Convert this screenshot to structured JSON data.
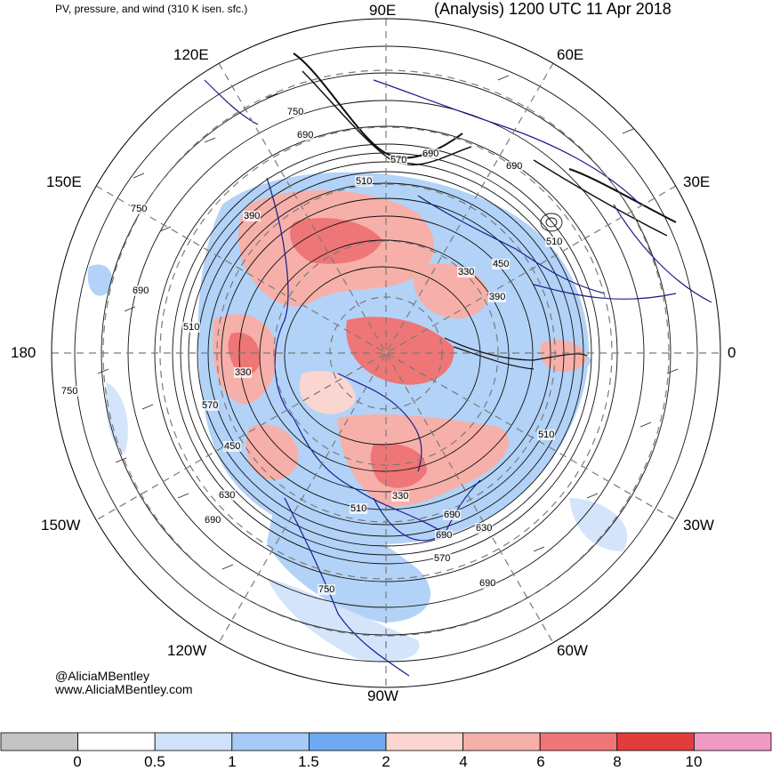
{
  "header": {
    "left_title": "PV, pressure, and wind (310 K isen. sfc.)",
    "right_title": "(Analysis) 1200 UTC 11 Apr 2018"
  },
  "longitude_labels": {
    "deg90e": "90E",
    "deg60e": "60E",
    "deg120e": "120E",
    "deg150e": "150E",
    "deg30e": "30E",
    "deg180": "180",
    "deg0": "0",
    "deg150w": "150W",
    "deg30w": "30W",
    "deg120w": "120W",
    "deg60w": "60W",
    "deg90w": "90W"
  },
  "contour_labels": [
    "750",
    "690",
    "570",
    "690",
    "510",
    "690",
    "390",
    "750",
    "690",
    "510",
    "330",
    "570",
    "450",
    "630",
    "690",
    "330",
    "510",
    "630",
    "690",
    "750",
    "570",
    "750",
    "690",
    "330",
    "450",
    "390",
    "510",
    "510",
    "690"
  ],
  "credits": {
    "handle": "@AliciaMBentley",
    "website": "www.AliciaMBentley.com"
  },
  "colorbar": {
    "segments": [
      {
        "color": "#c4c4c4"
      },
      {
        "color": "#ffffff"
      },
      {
        "color": "#cfe1fb"
      },
      {
        "color": "#a5cbf6"
      },
      {
        "color": "#6eaaf1"
      },
      {
        "color": "#fbd5d0"
      },
      {
        "color": "#f6b0a9"
      },
      {
        "color": "#ef7676"
      },
      {
        "color": "#e23d3d"
      },
      {
        "color": "#f19ac4"
      }
    ],
    "tick_labels": [
      "0",
      "0.5",
      "1",
      "1.5",
      "2",
      "4",
      "6",
      "8",
      "10"
    ]
  },
  "colors": {
    "land_boundary": "#1b1b8c",
    "pressure_contour": "#111111",
    "grid": "#7a7a7a"
  }
}
